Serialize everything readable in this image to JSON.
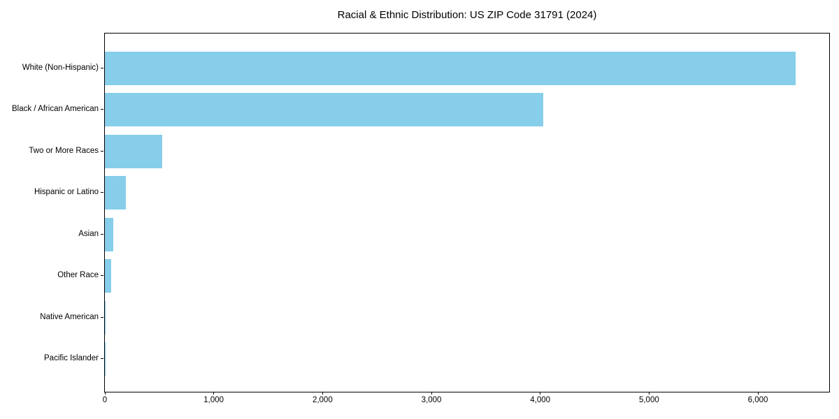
{
  "title": "Racial & Ethnic Distribution: US ZIP Code 31791 (2024)",
  "chart_data": {
    "type": "bar",
    "orientation": "horizontal",
    "title": "Racial & Ethnic Distribution: US ZIP Code 31791 (2024)",
    "xlabel": "",
    "ylabel": "",
    "categories": [
      "White (Non-Hispanic)",
      "Black / African American",
      "Two or More Races",
      "Hispanic or Latino",
      "Asian",
      "Other Race",
      "Native American",
      "Pacific Islander"
    ],
    "values": [
      6350,
      4025,
      525,
      195,
      80,
      55,
      8,
      2
    ],
    "xlim": [
      0,
      6668
    ],
    "xticks": [
      0,
      1000,
      2000,
      3000,
      4000,
      5000,
      6000
    ],
    "xtick_labels": [
      "0",
      "1,000",
      "2,000",
      "3,000",
      "4,000",
      "5,000",
      "6,000"
    ],
    "bar_color": "#87CEEB",
    "axis_color": "#000000",
    "grid": false,
    "legend": "none"
  }
}
